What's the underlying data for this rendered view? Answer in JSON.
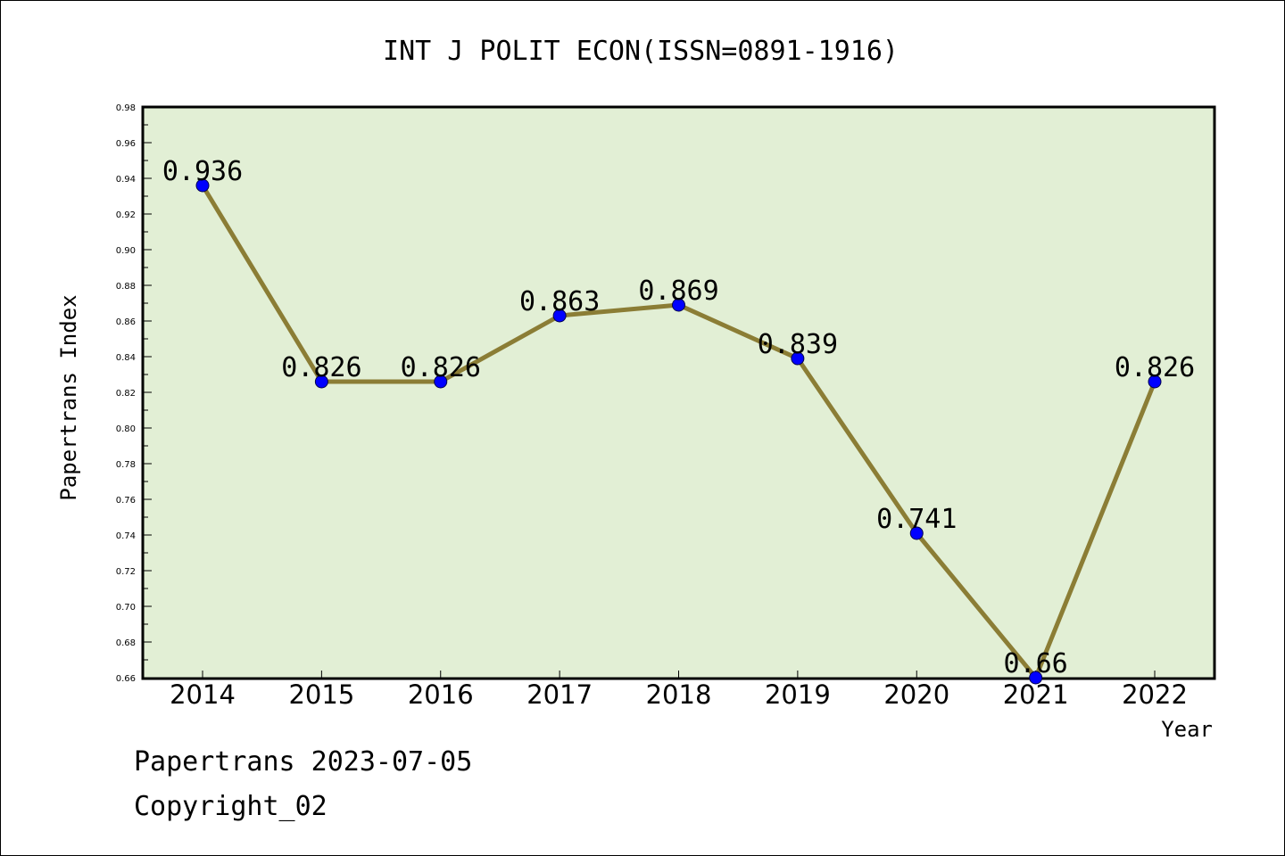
{
  "chart_data": {
    "type": "line",
    "title": "INT J POLIT ECON(ISSN=0891-1916)",
    "xlabel": "Year",
    "ylabel": "Papertrans Index",
    "categories": [
      "2014",
      "2015",
      "2016",
      "2017",
      "2018",
      "2019",
      "2020",
      "2021",
      "2022"
    ],
    "series": [
      {
        "values": [
          0.936,
          0.826,
          0.826,
          0.863,
          0.869,
          0.839,
          0.741,
          0.66,
          0.826
        ],
        "labels": [
          "0.936",
          "0.826",
          "0.826",
          "0.863",
          "0.869",
          "0.839",
          "0.741",
          "0.66",
          "0.826"
        ],
        "line_color": "#8b7d35",
        "marker_color": "#0000ff"
      }
    ],
    "ylim": [
      0.66,
      0.98
    ],
    "yticks": [
      "0.66",
      "0.68",
      "0.70",
      "0.72",
      "0.74",
      "0.76",
      "0.78",
      "0.80",
      "0.82",
      "0.84",
      "0.86",
      "0.88",
      "0.90",
      "0.92",
      "0.94",
      "0.96",
      "0.98"
    ],
    "plot_background": "#e2efd5",
    "grid": false,
    "legend": "none"
  },
  "footer": {
    "line1": "Papertrans 2023-07-05",
    "line2": "Copyright_02"
  }
}
